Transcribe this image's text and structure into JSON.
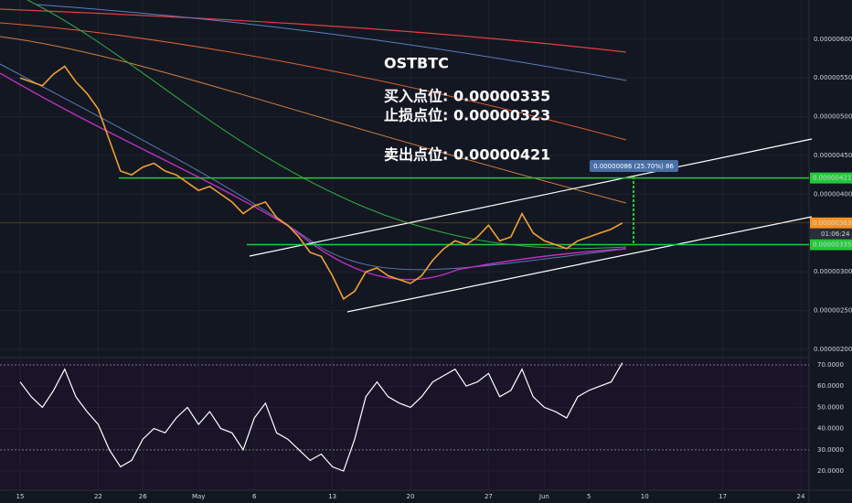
{
  "chart_data": {
    "type": "line",
    "title": "OSTBTC",
    "annotations": [
      "买入点位: 0.00000335",
      "止损点位: 0.00000323",
      "卖出点位: 0.00000421"
    ],
    "measure_label": "0.00000086 (25.70%) 86",
    "countdown": "01:06:24",
    "categories": [
      "15",
      null,
      null,
      null,
      null,
      null,
      null,
      "22",
      null,
      null,
      null,
      "26",
      null,
      null,
      null,
      null,
      "May",
      null,
      null,
      null,
      null,
      "6",
      null,
      null,
      null,
      null,
      null,
      null,
      "13",
      null,
      null,
      null,
      null,
      null,
      null,
      "20",
      null,
      null,
      null,
      null,
      null,
      null,
      "27",
      null,
      null,
      null,
      null,
      "Jun",
      null,
      null,
      null,
      "5",
      null,
      null,
      null,
      null,
      "10",
      null,
      null,
      null,
      null,
      null,
      null,
      "17",
      null,
      null,
      null,
      null,
      null,
      null,
      "24",
      null
    ],
    "series": [
      {
        "name": "OSTBTC",
        "color": "#f0a030",
        "values": [
          5.5e-06,
          5.45e-06,
          5.4e-06,
          5.55e-06,
          5.65e-06,
          5.45e-06,
          5.3e-06,
          5.1e-06,
          4.7e-06,
          4.3e-06,
          4.25e-06,
          4.35e-06,
          4.4e-06,
          4.3e-06,
          4.25e-06,
          4.15e-06,
          4.05e-06,
          4.1e-06,
          4e-06,
          3.9e-06,
          3.75e-06,
          3.85e-06,
          3.9e-06,
          3.7e-06,
          3.6e-06,
          3.45e-06,
          3.25e-06,
          3.2e-06,
          2.95e-06,
          2.65e-06,
          2.75e-06,
          3e-06,
          3.05e-06,
          2.95e-06,
          2.9e-06,
          2.85e-06,
          2.95e-06,
          3.15e-06,
          3.3e-06,
          3.4e-06,
          3.35e-06,
          3.45e-06,
          3.6e-06,
          3.4e-06,
          3.45e-06,
          3.75e-06,
          3.5e-06,
          3.4e-06,
          3.35e-06,
          3.3e-06,
          3.4e-06,
          3.45e-06,
          3.5e-06,
          3.55e-06,
          3.63e-06,
          null,
          null,
          null,
          null,
          null,
          null,
          null,
          null,
          null,
          null,
          null,
          null,
          null,
          null,
          null,
          null,
          null
        ]
      }
    ],
    "ylim": [
      1.906e-06,
      6.505e-06
    ],
    "yticks": [
      {
        "value": 6e-06,
        "label": "0.00000600"
      },
      {
        "value": 5.5e-06,
        "label": "0.00000550"
      },
      {
        "value": 5e-06,
        "label": "0.00000500"
      },
      {
        "value": 4.5e-06,
        "label": "0.00000450"
      },
      {
        "value": 4e-06,
        "label": "0.00000400"
      },
      {
        "value": 3e-06,
        "label": "0.00000300"
      },
      {
        "value": 2.5e-06,
        "label": "0.00000250"
      },
      {
        "value": 2e-06,
        "label": "0.00000200"
      }
    ],
    "levels": [
      {
        "value": 4.21e-06,
        "label": "0.00000421",
        "color": "#22c93a"
      },
      {
        "value": 3.63e-06,
        "label": "0.00000363",
        "color": "#f7941d"
      },
      {
        "value": 3.35e-06,
        "label": "0.00000335",
        "color": "#22c93a"
      }
    ],
    "rsi": {
      "color": "#ffffff",
      "values": [
        62,
        55,
        50,
        58,
        68,
        55,
        48,
        42,
        30,
        22,
        25,
        35,
        40,
        38,
        45,
        50,
        42,
        48,
        40,
        38,
        30,
        45,
        52,
        38,
        35,
        30,
        25,
        28,
        22,
        20,
        35,
        55,
        62,
        55,
        52,
        50,
        55,
        62,
        65,
        68,
        60,
        62,
        66,
        55,
        58,
        68,
        55,
        50,
        48,
        45,
        55,
        58,
        60,
        62,
        71,
        null,
        null,
        null,
        null,
        null,
        null,
        null,
        null,
        null,
        null,
        null,
        null,
        null,
        null,
        null,
        null,
        null
      ],
      "ylim": [
        11.4,
        72.6
      ],
      "yticks": [
        {
          "value": 70,
          "label": "70.0000"
        },
        {
          "value": 60,
          "label": "60.0000"
        },
        {
          "value": 50,
          "label": "50.0000"
        },
        {
          "value": 40,
          "label": "40.0000"
        },
        {
          "value": 30,
          "label": "30.0000"
        },
        {
          "value": 20,
          "label": "20.0000"
        }
      ]
    },
    "grid": true
  }
}
